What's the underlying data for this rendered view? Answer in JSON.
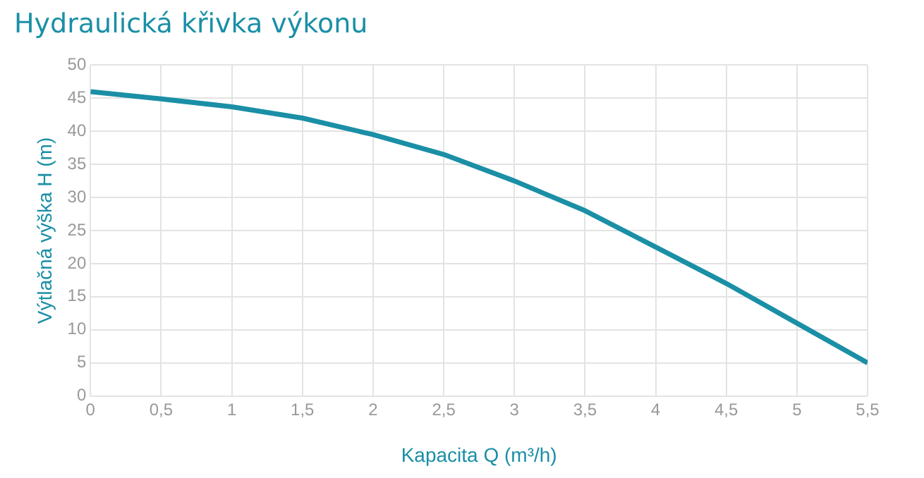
{
  "chart_data": {
    "type": "line",
    "title": "Hydraulická křivka výkonu",
    "xlabel": "Kapacita Q (m³/h)",
    "ylabel": "Výtlačná výška H (m)",
    "x": [
      0,
      0.5,
      1,
      1.5,
      2,
      2.5,
      3,
      3.5,
      4,
      4.5,
      5,
      5.5
    ],
    "series": [
      {
        "color": "#1a8fa6",
        "values": [
          46,
          44.9,
          43.7,
          42,
          39.5,
          36.5,
          32.5,
          28,
          22.5,
          17,
          11,
          5
        ]
      }
    ],
    "xlim": [
      0,
      5.5
    ],
    "xticks": [
      0,
      {
        "value": 0.5,
        "label": "0,5"
      },
      1,
      {
        "value": 1.5,
        "label": "1,5"
      },
      2,
      {
        "value": 2.5,
        "label": "2,5"
      },
      3,
      {
        "value": 3.5,
        "label": "3,5"
      },
      4,
      {
        "value": 4.5,
        "label": "4,5"
      },
      5,
      {
        "value": 5.5,
        "label": "5,5"
      }
    ],
    "ylim": [
      0,
      50
    ],
    "yticks": [
      0,
      5,
      10,
      15,
      20,
      25,
      30,
      35,
      40,
      45,
      50
    ],
    "grid": true,
    "legend": false,
    "marker": "none",
    "line_style": "solid"
  }
}
